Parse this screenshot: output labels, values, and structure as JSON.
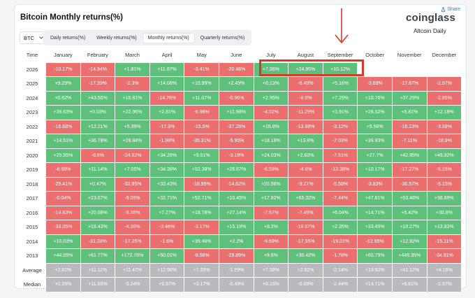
{
  "header": {
    "title": "Bitcoin Monthly returns(%)",
    "share_label": "Share",
    "logo": "coinglass",
    "subtitle": "Altcoin Daily"
  },
  "controls": {
    "asset": "BTC",
    "tabs": [
      "Daily returns(%)",
      "Weekly returns(%)",
      "Monthly returns(%)",
      "Quarterly returns(%)"
    ],
    "active_tab": 2
  },
  "table": {
    "columns": [
      "Time",
      "January",
      "February",
      "March",
      "April",
      "May",
      "June",
      "July",
      "August",
      "September",
      "October",
      "November",
      "December"
    ],
    "rows": [
      {
        "label": "2026",
        "values": [
          "-10.17%",
          "-14.94%",
          "+1.81%",
          "+11.87%",
          "-3.41%",
          "-20.48%",
          "+7.36%",
          "+24.95%",
          "+10.12%",
          "",
          "",
          ""
        ]
      },
      {
        "label": "2025",
        "values": [
          "+9.29%",
          "-17.39%",
          "-2.3%",
          "+14.08%",
          "+10.99%",
          "+2.49%",
          "+8.13%",
          "-6.49%",
          "+5.16%",
          "-3.69%",
          "-17.67%",
          "-2.97%"
        ]
      },
      {
        "label": "2024",
        "values": [
          "+0.62%",
          "+43.55%",
          "+16.81%",
          "-14.76%",
          "+11.07%",
          "-6.96%",
          "+2.95%",
          "-8.6%",
          "+7.29%",
          "+10.76%",
          "+37.29%",
          "-2.85%"
        ]
      },
      {
        "label": "2023",
        "values": [
          "+39.63%",
          "+0.03%",
          "+22.96%",
          "+2.81%",
          "-6.98%",
          "+11.98%",
          "-4.02%",
          "-11.29%",
          "+3.91%",
          "+28.52%",
          "+8.81%",
          "+12.18%"
        ]
      },
      {
        "label": "2022",
        "values": [
          "-16.68%",
          "+12.21%",
          "+5.39%",
          "-17.3%",
          "-15.6%",
          "-37.28%",
          "+16.8%",
          "-13.88%",
          "-3.12%",
          "+5.56%",
          "-16.23%",
          "-3.59%"
        ]
      },
      {
        "label": "2021",
        "values": [
          "+14.51%",
          "+36.78%",
          "+29.84%",
          "-1.98%",
          "-35.31%",
          "-5.95%",
          "+18.19%",
          "+13.8%",
          "-7.03%",
          "+39.93%",
          "-7.11%",
          "-18.9%"
        ]
      },
      {
        "label": "2020",
        "values": [
          "+29.95%",
          "-8.6%",
          "-24.92%",
          "+34.26%",
          "+9.51%",
          "-3.18%",
          "+24.03%",
          "+2.83%",
          "-7.51%",
          "+27.7%",
          "+42.95%",
          "+46.92%"
        ]
      },
      {
        "label": "2019",
        "values": [
          "-8.58%",
          "+11.14%",
          "+7.05%",
          "+34.36%",
          "+52.38%",
          "+26.67%",
          "-6.59%",
          "-4.6%",
          "-13.38%",
          "+10.17%",
          "-17.27%",
          "-5.15%"
        ]
      },
      {
        "label": "2018",
        "values": [
          "-25.41%",
          "+0.47%",
          "-32.85%",
          "+33.43%",
          "-18.99%",
          "-14.62%",
          "+20.96%",
          "-9.27%",
          "-5.58%",
          "-3.83%",
          "-36.57%",
          "-5.15%"
        ]
      },
      {
        "label": "2017",
        "values": [
          "-0.04%",
          "+23.07%",
          "-9.05%",
          "+32.71%",
          "+52.71%",
          "+10.45%",
          "+17.92%",
          "+65.32%",
          "-7.44%",
          "+47.81%",
          "+53.48%",
          "+38.89%"
        ]
      },
      {
        "label": "2016",
        "values": [
          "-14.83%",
          "+20.08%",
          "-5.35%",
          "+7.27%",
          "+18.78%",
          "+27.14%",
          "-7.67%",
          "-7.49%",
          "+6.04%",
          "+14.71%",
          "+5.42%",
          "+30.8%"
        ]
      },
      {
        "label": "2015",
        "values": [
          "-33.05%",
          "+18.43%",
          "-4.38%",
          "-3.46%",
          "-3.17%",
          "+15.19%",
          "+8.2%",
          "-18.67%",
          "+2.35%",
          "+33.49%",
          "+19.27%",
          "+13.83%"
        ]
      },
      {
        "label": "2014",
        "values": [
          "+10.03%",
          "-31.03%",
          "-17.25%",
          "-1.6%",
          "+39.46%",
          "+2.2%",
          "-9.69%",
          "-17.55%",
          "-19.01%",
          "-12.95%",
          "+12.82%",
          "-15.11%"
        ]
      },
      {
        "label": "2013",
        "values": [
          "+44.05%",
          "+61.77%",
          "+172.76%",
          "+50.01%",
          "-8.56%",
          "-29.89%",
          "+9.6%",
          "+30.42%",
          "-1.76%",
          "+60.79%",
          "+449.35%",
          "-34.81%"
        ]
      }
    ],
    "summary": [
      {
        "label": "Average",
        "values": [
          "+2.81%",
          "+11.11%",
          "+11.47%",
          "+12.98%",
          "+7.35%",
          "-1.59%",
          "+7.58%",
          "+2.82%",
          "-2.14%",
          "+19.92%",
          "+41.12%",
          "+4.16%"
        ]
      },
      {
        "label": "Median",
        "values": [
          "+0.29%",
          "+11.68%",
          "-0.24%",
          "+9.57%",
          "+3.17%",
          "-0.49%",
          "+8.16%",
          "-6.99%",
          "-2.44%",
          "+14.71%",
          "+8.81%",
          "-2.97%"
        ]
      }
    ]
  },
  "colors": {
    "positive": "#5fc07c",
    "negative": "#ec6f6f",
    "summary": "#b8babd",
    "annotation": "#d63a2a"
  }
}
